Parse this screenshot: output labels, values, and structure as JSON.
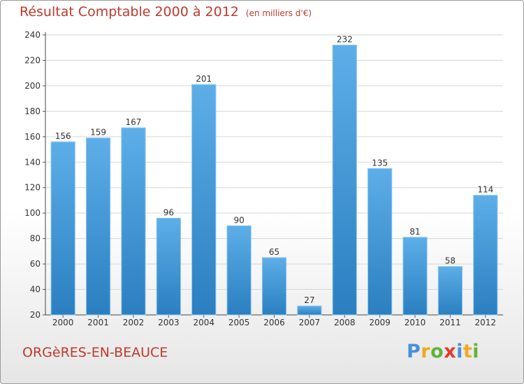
{
  "title": "Résultat Comptable 2000 à 2012",
  "subtitle": "(en milliers d'€)",
  "town": "ORGèRES-EN-BEAUCE",
  "logo": {
    "letters": [
      "P",
      "r",
      "o",
      "x",
      "i",
      "t",
      "i"
    ],
    "colors": [
      "#4a90d9",
      "#f2a91e",
      "#63b23a",
      "#e23c2a",
      "#4a90d9",
      "#f2a91e",
      "#63b23a"
    ]
  },
  "colors": {
    "bar_light": "#5daee8",
    "bar_dark": "#2b7fc0",
    "title": "#c0392b",
    "grid": "#d6d6d6"
  },
  "chart_data": {
    "type": "bar",
    "title": "Résultat Comptable 2000 à 2012",
    "xlabel": "",
    "ylabel": "",
    "categories": [
      "2000",
      "2001",
      "2002",
      "2003",
      "2004",
      "2005",
      "2006",
      "2007",
      "2008",
      "2009",
      "2010",
      "2011",
      "2012"
    ],
    "values": [
      156,
      159,
      167,
      96,
      201,
      90,
      65,
      27,
      232,
      135,
      81,
      58,
      114
    ],
    "ylim": [
      20,
      240
    ],
    "yticks": [
      20,
      40,
      60,
      80,
      100,
      120,
      140,
      160,
      180,
      200,
      220,
      240
    ],
    "grid": true
  }
}
